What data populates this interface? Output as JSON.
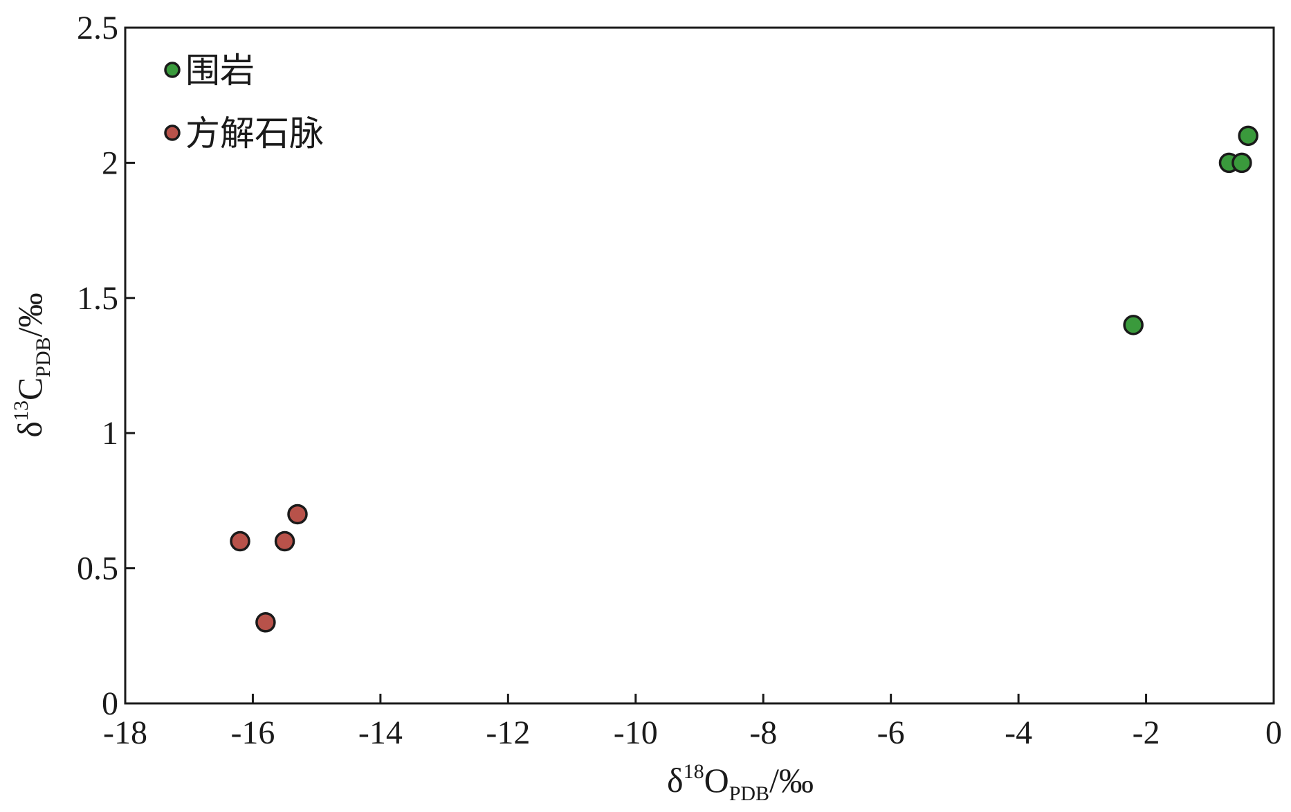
{
  "chart_data": {
    "type": "scatter",
    "title": "",
    "xlabel": {
      "main": "δ",
      "sup": "18",
      "core": "O",
      "sub": "PDB",
      "unit": "/‰"
    },
    "ylabel": {
      "main": "δ",
      "sup": "13",
      "core": "C",
      "sub": "PDB",
      "unit": "/‰"
    },
    "xlim": [
      -18,
      0
    ],
    "ylim": [
      0,
      2.5
    ],
    "xticks": [
      -18,
      -16,
      -14,
      -12,
      -10,
      -8,
      -6,
      -4,
      -2,
      0
    ],
    "yticks": [
      0,
      0.5,
      1,
      1.5,
      2,
      2.5
    ],
    "xtick_labels": [
      "-18",
      "-16",
      "-14",
      "-12",
      "-10",
      "-8",
      "-6",
      "-4",
      "-2",
      "0"
    ],
    "ytick_labels": [
      "0",
      "0.5",
      "1",
      "1.5",
      "2",
      "2.5"
    ],
    "grid": false,
    "legend_position": "top-left",
    "series": [
      {
        "name": "围岩",
        "color": "#3a9a3c",
        "points": [
          {
            "x": -2.2,
            "y": 1.4
          },
          {
            "x": -0.7,
            "y": 2.0
          },
          {
            "x": -0.5,
            "y": 2.0
          },
          {
            "x": -0.4,
            "y": 2.1
          }
        ]
      },
      {
        "name": "方解石脉",
        "color": "#b8524a",
        "points": [
          {
            "x": -16.2,
            "y": 0.6
          },
          {
            "x": -15.8,
            "y": 0.3
          },
          {
            "x": -15.5,
            "y": 0.6
          },
          {
            "x": -15.3,
            "y": 0.7
          }
        ]
      }
    ]
  }
}
